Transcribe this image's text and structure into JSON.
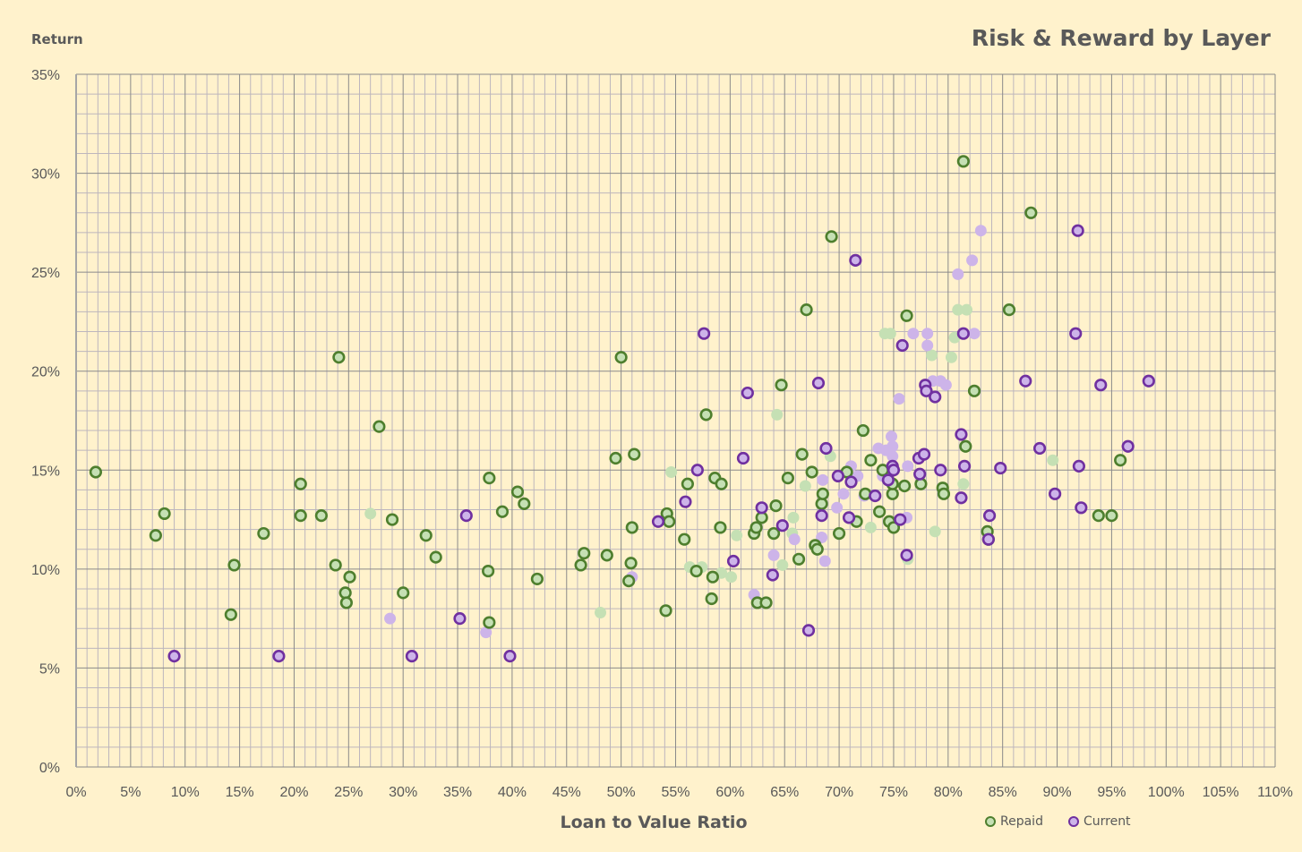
{
  "chart_data": {
    "type": "scatter",
    "title": "Risk & Reward by Layer",
    "xlabel": "Loan to Value Ratio",
    "ylabel": "Return",
    "xlim": [
      0,
      110
    ],
    "ylim": [
      0,
      35
    ],
    "x_major_step": 5,
    "y_major_step": 5,
    "minor_step": 1,
    "grid": true,
    "legend_position": "bottom-right",
    "x_tick_labels": [
      "0%",
      "5%",
      "10%",
      "15%",
      "20%",
      "25%",
      "30%",
      "35%",
      "40%",
      "45%",
      "50%",
      "55%",
      "60%",
      "65%",
      "70%",
      "75%",
      "80%",
      "85%",
      "90%",
      "95%",
      "100%",
      "105%",
      "110%"
    ],
    "y_tick_labels": [
      "0%",
      "5%",
      "10%",
      "15%",
      "20%",
      "25%",
      "30%",
      "35%"
    ],
    "series": [
      {
        "name": "Repaid",
        "legend": false,
        "faded": true,
        "fill": "#C5E0B4",
        "stroke": "none",
        "points": [
          [
            27.0,
            12.8
          ],
          [
            48.1,
            7.8
          ],
          [
            54.6,
            14.9
          ],
          [
            56.3,
            10.1
          ],
          [
            57.4,
            10.1
          ],
          [
            59.2,
            9.8
          ],
          [
            60.1,
            9.6
          ],
          [
            60.6,
            11.7
          ],
          [
            64.3,
            17.8
          ],
          [
            64.8,
            10.2
          ],
          [
            65.8,
            12.6
          ],
          [
            65.7,
            11.8
          ],
          [
            66.9,
            14.2
          ],
          [
            69.2,
            15.7
          ],
          [
            72.9,
            12.1
          ],
          [
            74.2,
            21.9
          ],
          [
            74.7,
            21.9
          ],
          [
            78.5,
            20.8
          ],
          [
            78.8,
            11.9
          ],
          [
            80.3,
            20.7
          ],
          [
            80.6,
            21.7
          ],
          [
            80.9,
            23.1
          ],
          [
            81.7,
            23.1
          ],
          [
            81.4,
            14.3
          ],
          [
            89.6,
            15.5
          ],
          [
            76.3,
            10.5
          ]
        ]
      },
      {
        "name": "Current",
        "legend": false,
        "faded": true,
        "fill": "#CDB4E9",
        "stroke": "none",
        "points": [
          [
            28.8,
            7.5
          ],
          [
            37.6,
            6.8
          ],
          [
            51.0,
            9.6
          ],
          [
            62.2,
            8.7
          ],
          [
            64.0,
            10.7
          ],
          [
            65.9,
            11.5
          ],
          [
            68.4,
            11.6
          ],
          [
            68.7,
            10.4
          ],
          [
            68.5,
            14.5
          ],
          [
            69.8,
            13.1
          ],
          [
            70.4,
            13.8
          ],
          [
            71.1,
            15.2
          ],
          [
            71.7,
            14.7
          ],
          [
            72.3,
            13.7
          ],
          [
            73.6,
            16.1
          ],
          [
            74.3,
            16.0
          ],
          [
            74.8,
            16.7
          ],
          [
            74.9,
            16.2
          ],
          [
            74.9,
            15.7
          ],
          [
            74.0,
            14.7
          ],
          [
            75.5,
            18.6
          ],
          [
            76.3,
            15.2
          ],
          [
            76.8,
            21.9
          ],
          [
            78.1,
            21.9
          ],
          [
            78.1,
            21.3
          ],
          [
            78.6,
            19.5
          ],
          [
            79.3,
            19.5
          ],
          [
            79.8,
            19.3
          ],
          [
            80.9,
            24.9
          ],
          [
            82.2,
            25.6
          ],
          [
            82.4,
            21.9
          ],
          [
            83.0,
            27.1
          ],
          [
            76.2,
            12.6
          ]
        ]
      },
      {
        "name": "Repaid",
        "legend": true,
        "faded": false,
        "fill": "#C5E0B4",
        "stroke": "#4E7F2E",
        "points": [
          [
            1.8,
            14.9
          ],
          [
            7.3,
            11.7
          ],
          [
            8.1,
            12.8
          ],
          [
            14.2,
            7.7
          ],
          [
            14.5,
            10.2
          ],
          [
            17.2,
            11.8
          ],
          [
            20.6,
            14.3
          ],
          [
            20.6,
            12.7
          ],
          [
            22.5,
            12.7
          ],
          [
            24.1,
            20.7
          ],
          [
            23.8,
            10.2
          ],
          [
            24.7,
            8.8
          ],
          [
            24.8,
            8.3
          ],
          [
            25.1,
            9.6
          ],
          [
            27.8,
            17.2
          ],
          [
            29.0,
            12.5
          ],
          [
            30.0,
            8.8
          ],
          [
            32.1,
            11.7
          ],
          [
            33.0,
            10.6
          ],
          [
            37.9,
            14.6
          ],
          [
            37.8,
            9.9
          ],
          [
            37.9,
            7.3
          ],
          [
            39.1,
            12.9
          ],
          [
            40.5,
            13.9
          ],
          [
            41.1,
            13.3
          ],
          [
            42.3,
            9.5
          ],
          [
            46.3,
            10.2
          ],
          [
            46.6,
            10.8
          ],
          [
            48.7,
            10.7
          ],
          [
            49.5,
            15.6
          ],
          [
            50.0,
            20.7
          ],
          [
            50.7,
            9.4
          ],
          [
            50.9,
            10.3
          ],
          [
            51.0,
            12.1
          ],
          [
            51.2,
            15.8
          ],
          [
            54.1,
            7.9
          ],
          [
            54.2,
            12.8
          ],
          [
            54.4,
            12.4
          ],
          [
            55.8,
            11.5
          ],
          [
            56.1,
            14.3
          ],
          [
            56.9,
            9.9
          ],
          [
            57.8,
            17.8
          ],
          [
            58.3,
            8.5
          ],
          [
            58.4,
            9.6
          ],
          [
            58.6,
            14.6
          ],
          [
            59.1,
            12.1
          ],
          [
            59.2,
            14.3
          ],
          [
            62.2,
            11.8
          ],
          [
            62.4,
            12.1
          ],
          [
            62.5,
            8.3
          ],
          [
            62.9,
            12.6
          ],
          [
            63.3,
            8.3
          ],
          [
            64.0,
            11.8
          ],
          [
            64.2,
            13.2
          ],
          [
            64.7,
            19.3
          ],
          [
            65.3,
            14.6
          ],
          [
            66.3,
            10.5
          ],
          [
            66.6,
            15.8
          ],
          [
            67.0,
            23.1
          ],
          [
            67.5,
            14.9
          ],
          [
            67.8,
            11.2
          ],
          [
            68.0,
            11.0
          ],
          [
            68.4,
            13.3
          ],
          [
            68.5,
            13.8
          ],
          [
            69.3,
            26.8
          ],
          [
            70.0,
            11.8
          ],
          [
            70.7,
            14.9
          ],
          [
            71.6,
            12.4
          ],
          [
            72.2,
            17.0
          ],
          [
            72.4,
            13.8
          ],
          [
            72.9,
            15.5
          ],
          [
            73.7,
            12.9
          ],
          [
            74.0,
            15.0
          ],
          [
            74.6,
            12.4
          ],
          [
            74.9,
            13.8
          ],
          [
            75.0,
            12.1
          ],
          [
            74.9,
            14.3
          ],
          [
            76.0,
            14.2
          ],
          [
            76.2,
            22.8
          ],
          [
            77.5,
            14.3
          ],
          [
            79.5,
            14.1
          ],
          [
            79.6,
            13.8
          ],
          [
            81.4,
            30.6
          ],
          [
            81.6,
            16.2
          ],
          [
            82.4,
            19.0
          ],
          [
            83.6,
            11.9
          ],
          [
            83.7,
            11.5
          ],
          [
            85.6,
            23.1
          ],
          [
            87.6,
            28.0
          ],
          [
            93.8,
            12.7
          ],
          [
            95.0,
            12.7
          ],
          [
            95.8,
            15.5
          ]
        ]
      },
      {
        "name": "Current",
        "legend": true,
        "faded": false,
        "fill": "#CDB4E9",
        "stroke": "#7030A0",
        "points": [
          [
            9.0,
            5.6
          ],
          [
            18.6,
            5.6
          ],
          [
            30.8,
            5.6
          ],
          [
            35.2,
            7.5
          ],
          [
            35.8,
            12.7
          ],
          [
            39.8,
            5.6
          ],
          [
            53.4,
            12.4
          ],
          [
            55.9,
            13.4
          ],
          [
            57.0,
            15.0
          ],
          [
            57.6,
            21.9
          ],
          [
            60.3,
            10.4
          ],
          [
            61.2,
            15.6
          ],
          [
            61.6,
            18.9
          ],
          [
            62.9,
            13.1
          ],
          [
            63.9,
            9.7
          ],
          [
            64.8,
            12.2
          ],
          [
            67.2,
            6.9
          ],
          [
            68.1,
            19.4
          ],
          [
            68.4,
            12.7
          ],
          [
            68.8,
            16.1
          ],
          [
            69.9,
            14.7
          ],
          [
            71.1,
            14.4
          ],
          [
            70.9,
            12.6
          ],
          [
            71.5,
            25.6
          ],
          [
            73.3,
            13.7
          ],
          [
            74.5,
            14.5
          ],
          [
            74.9,
            15.2
          ],
          [
            75.0,
            15.0
          ],
          [
            75.6,
            12.5
          ],
          [
            75.8,
            21.3
          ],
          [
            76.2,
            10.7
          ],
          [
            77.3,
            15.6
          ],
          [
            77.4,
            14.8
          ],
          [
            77.8,
            15.8
          ],
          [
            77.9,
            19.3
          ],
          [
            78.0,
            19.0
          ],
          [
            78.8,
            18.7
          ],
          [
            79.3,
            15.0
          ],
          [
            81.2,
            16.8
          ],
          [
            81.2,
            13.6
          ],
          [
            81.4,
            21.9
          ],
          [
            81.5,
            15.2
          ],
          [
            83.8,
            12.7
          ],
          [
            83.7,
            11.5
          ],
          [
            84.8,
            15.1
          ],
          [
            87.1,
            19.5
          ],
          [
            88.4,
            16.1
          ],
          [
            89.8,
            13.8
          ],
          [
            91.7,
            21.9
          ],
          [
            91.9,
            27.1
          ],
          [
            92.0,
            15.2
          ],
          [
            92.2,
            13.1
          ],
          [
            94.0,
            19.3
          ],
          [
            96.5,
            16.2
          ],
          [
            98.4,
            19.5
          ]
        ]
      }
    ]
  }
}
